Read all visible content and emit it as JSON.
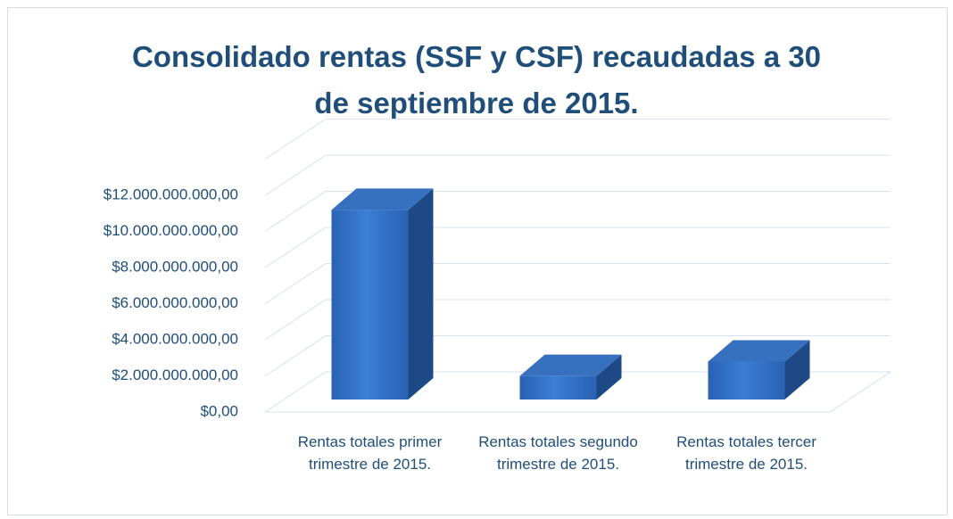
{
  "chart_data": {
    "type": "bar3d",
    "title": "Consolidado rentas (SSF y CSF) recaudadas a 30 de septiembre de 2015.",
    "categories": [
      "Rentas totales primer trimestre de 2015.",
      "Rentas totales segundo trimestre de 2015.",
      "Rentas totales tercer trimestre de 2015."
    ],
    "values": [
      10500000000,
      1300000000,
      2100000000
    ],
    "color": "#2e6fc4",
    "ylim": [
      0,
      14000000000
    ],
    "yticks": [
      {
        "value": 0,
        "label": "$0,00"
      },
      {
        "value": 2000000000,
        "label": "$2.000.000.000,00"
      },
      {
        "value": 4000000000,
        "label": "$4.000.000.000,00"
      },
      {
        "value": 6000000000,
        "label": "$6.000.000.000,00"
      },
      {
        "value": 8000000000,
        "label": "$8.000.000.000,00"
      },
      {
        "value": 10000000000,
        "label": "$10.000.000.000,00"
      },
      {
        "value": 12000000000,
        "label": "$12.000.000.000,00"
      }
    ],
    "grid": true
  }
}
